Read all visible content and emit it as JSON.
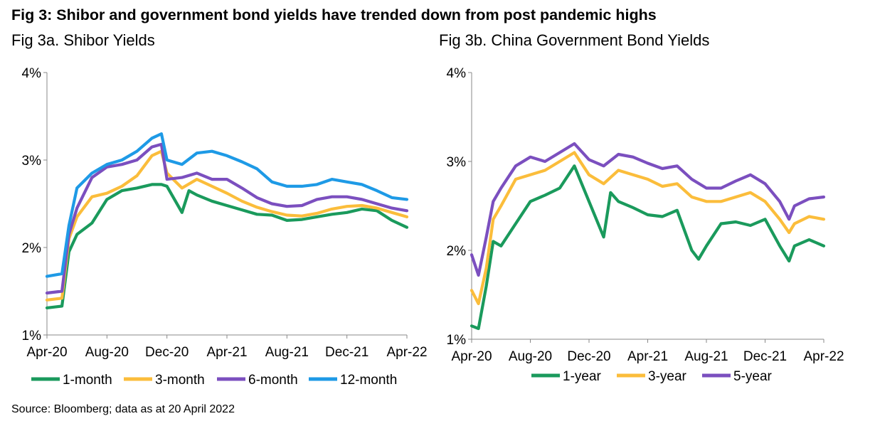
{
  "title": "Fig 3: Shibor and government bond yields have trended down from post pandemic highs",
  "source": "Source: Bloomberg; data as at 20 April 2022",
  "chart_data": [
    {
      "type": "line",
      "title": "Fig 3a. Shibor Yields",
      "xlabel": "",
      "ylabel": "",
      "x_ticks": [
        "Apr-20",
        "Aug-20",
        "Dec-20",
        "Apr-21",
        "Aug-21",
        "Dec-21",
        "Apr-22"
      ],
      "y_ticks": [
        "1%",
        "2%",
        "3%",
        "4%"
      ],
      "ylim": [
        1,
        4
      ],
      "xlim": [
        "2020-04",
        "2022-04"
      ],
      "grid": false,
      "legend": "bottom",
      "series": [
        {
          "name": "1-month",
          "color": "#1a9a5c",
          "x": [
            "2020-04",
            "2020-05",
            "2020-05-15",
            "2020-06",
            "2020-07",
            "2020-08",
            "2020-09",
            "2020-10",
            "2020-11",
            "2020-11-20",
            "2020-12",
            "2021-01",
            "2021-01-15",
            "2021-02",
            "2021-03",
            "2021-04",
            "2021-05",
            "2021-06",
            "2021-07",
            "2021-08",
            "2021-09",
            "2021-10",
            "2021-11",
            "2021-12",
            "2022-01",
            "2022-02",
            "2022-03",
            "2022-04"
          ],
          "y": [
            1.31,
            1.33,
            1.95,
            2.15,
            2.28,
            2.55,
            2.65,
            2.68,
            2.72,
            2.72,
            2.7,
            2.4,
            2.65,
            2.6,
            2.53,
            2.48,
            2.43,
            2.38,
            2.37,
            2.31,
            2.32,
            2.35,
            2.38,
            2.4,
            2.44,
            2.42,
            2.31,
            2.23
          ]
        },
        {
          "name": "3-month",
          "color": "#fbbd3b",
          "x": [
            "2020-04",
            "2020-05",
            "2020-05-15",
            "2020-06",
            "2020-07",
            "2020-08",
            "2020-09",
            "2020-10",
            "2020-11",
            "2020-11-20",
            "2020-12",
            "2021-01",
            "2021-02",
            "2021-03",
            "2021-04",
            "2021-05",
            "2021-06",
            "2021-07",
            "2021-08",
            "2021-09",
            "2021-10",
            "2021-11",
            "2021-12",
            "2022-01",
            "2022-02",
            "2022-03",
            "2022-04"
          ],
          "y": [
            1.4,
            1.42,
            2.1,
            2.35,
            2.58,
            2.62,
            2.7,
            2.82,
            3.05,
            3.1,
            2.85,
            2.68,
            2.78,
            2.7,
            2.62,
            2.53,
            2.46,
            2.41,
            2.37,
            2.36,
            2.39,
            2.44,
            2.47,
            2.48,
            2.45,
            2.4,
            2.35
          ]
        },
        {
          "name": "6-month",
          "color": "#7b4fbf",
          "x": [
            "2020-04",
            "2020-05",
            "2020-05-15",
            "2020-06",
            "2020-07",
            "2020-08",
            "2020-09",
            "2020-10",
            "2020-11",
            "2020-11-20",
            "2020-12",
            "2021-01",
            "2021-02",
            "2021-03",
            "2021-04",
            "2021-05",
            "2021-06",
            "2021-07",
            "2021-08",
            "2021-09",
            "2021-10",
            "2021-11",
            "2021-12",
            "2022-01",
            "2022-02",
            "2022-03",
            "2022-04"
          ],
          "y": [
            1.48,
            1.5,
            2.15,
            2.45,
            2.8,
            2.92,
            2.95,
            3.0,
            3.15,
            3.18,
            2.78,
            2.8,
            2.85,
            2.78,
            2.78,
            2.68,
            2.57,
            2.5,
            2.47,
            2.48,
            2.55,
            2.58,
            2.58,
            2.55,
            2.5,
            2.45,
            2.42
          ]
        },
        {
          "name": "12-month",
          "color": "#1e9ae6",
          "x": [
            "2020-04",
            "2020-05",
            "2020-05-15",
            "2020-06",
            "2020-07",
            "2020-08",
            "2020-09",
            "2020-10",
            "2020-11",
            "2020-11-20",
            "2020-12",
            "2021-01",
            "2021-02",
            "2021-03",
            "2021-04",
            "2021-05",
            "2021-06",
            "2021-07",
            "2021-08",
            "2021-09",
            "2021-10",
            "2021-11",
            "2021-12",
            "2022-01",
            "2022-02",
            "2022-03",
            "2022-04"
          ],
          "y": [
            1.67,
            1.7,
            2.25,
            2.68,
            2.85,
            2.95,
            3.0,
            3.1,
            3.25,
            3.3,
            3.0,
            2.95,
            3.08,
            3.1,
            3.05,
            2.98,
            2.9,
            2.75,
            2.7,
            2.7,
            2.72,
            2.78,
            2.75,
            2.72,
            2.65,
            2.57,
            2.55
          ]
        }
      ]
    },
    {
      "type": "line",
      "title": "Fig 3b. China Government Bond Yields",
      "xlabel": "",
      "ylabel": "",
      "x_ticks": [
        "Apr-20",
        "Aug-20",
        "Dec-20",
        "Apr-21",
        "Aug-21",
        "Dec-21",
        "Apr-22"
      ],
      "y_ticks": [
        "1%",
        "2%",
        "3%",
        "4%"
      ],
      "ylim": [
        1,
        4
      ],
      "xlim": [
        "2020-04",
        "2022-04"
      ],
      "grid": false,
      "legend": "bottom",
      "series": [
        {
          "name": "1-year",
          "color": "#1a9a5c",
          "x": [
            "2020-04",
            "2020-04-15",
            "2020-05",
            "2020-05-15",
            "2020-06",
            "2020-07",
            "2020-08",
            "2020-09",
            "2020-10",
            "2020-11",
            "2020-12",
            "2021-01",
            "2021-01-15",
            "2021-02",
            "2021-03",
            "2021-04",
            "2021-05",
            "2021-06",
            "2021-07",
            "2021-07-15",
            "2021-08",
            "2021-09",
            "2021-10",
            "2021-11",
            "2021-12",
            "2022-01",
            "2022-01-20",
            "2022-02",
            "2022-03",
            "2022-04"
          ],
          "y": [
            1.15,
            1.12,
            1.6,
            2.1,
            2.05,
            2.3,
            2.55,
            2.62,
            2.7,
            2.95,
            2.55,
            2.15,
            2.65,
            2.55,
            2.48,
            2.4,
            2.38,
            2.45,
            2.0,
            1.9,
            2.05,
            2.3,
            2.32,
            2.28,
            2.35,
            2.05,
            1.88,
            2.05,
            2.12,
            2.05
          ]
        },
        {
          "name": "3-year",
          "color": "#fbbd3b",
          "x": [
            "2020-04",
            "2020-04-15",
            "2020-05",
            "2020-05-15",
            "2020-06",
            "2020-07",
            "2020-08",
            "2020-09",
            "2020-10",
            "2020-11",
            "2020-12",
            "2021-01",
            "2021-02",
            "2021-03",
            "2021-04",
            "2021-05",
            "2021-06",
            "2021-07",
            "2021-08",
            "2021-09",
            "2021-10",
            "2021-11",
            "2021-12",
            "2022-01",
            "2022-01-20",
            "2022-02",
            "2022-03",
            "2022-04"
          ],
          "y": [
            1.55,
            1.4,
            1.8,
            2.35,
            2.5,
            2.8,
            2.85,
            2.9,
            3.0,
            3.1,
            2.85,
            2.75,
            2.9,
            2.85,
            2.8,
            2.72,
            2.75,
            2.6,
            2.55,
            2.55,
            2.6,
            2.65,
            2.55,
            2.35,
            2.2,
            2.3,
            2.38,
            2.35
          ]
        },
        {
          "name": "5-year",
          "color": "#7b4fbf",
          "x": [
            "2020-04",
            "2020-04-15",
            "2020-05",
            "2020-05-15",
            "2020-06",
            "2020-07",
            "2020-08",
            "2020-09",
            "2020-10",
            "2020-11",
            "2020-12",
            "2021-01",
            "2021-02",
            "2021-03",
            "2021-04",
            "2021-05",
            "2021-06",
            "2021-07",
            "2021-08",
            "2021-09",
            "2021-10",
            "2021-11",
            "2021-12",
            "2022-01",
            "2022-01-20",
            "2022-02",
            "2022-03",
            "2022-04"
          ],
          "y": [
            1.95,
            1.72,
            2.15,
            2.55,
            2.7,
            2.95,
            3.05,
            3.0,
            3.1,
            3.2,
            3.02,
            2.95,
            3.08,
            3.05,
            2.98,
            2.92,
            2.95,
            2.8,
            2.7,
            2.7,
            2.78,
            2.85,
            2.75,
            2.55,
            2.35,
            2.5,
            2.58,
            2.6
          ]
        }
      ]
    }
  ]
}
